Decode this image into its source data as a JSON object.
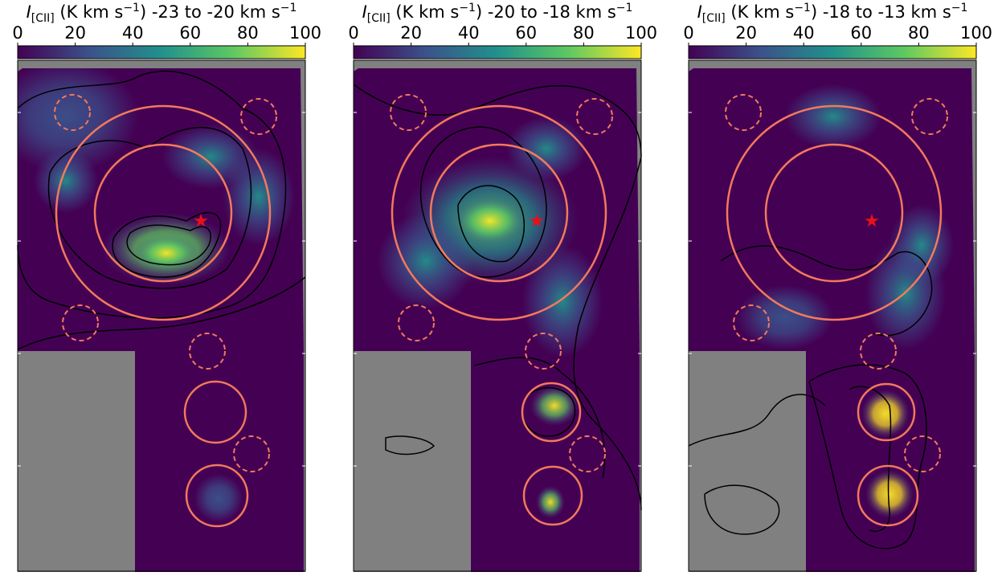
{
  "chart_data": [
    {
      "type": "image",
      "title_parts": [
        "I",
        "[CII]",
        " (K km s",
        "−1",
        ") -23 to -20 km s",
        "−1"
      ],
      "colorbar": {
        "lim": [
          0,
          100
        ],
        "ticks": [
          0,
          20,
          40,
          60,
          80,
          100
        ],
        "colormap": [
          "#440154",
          "#3b528b",
          "#21918c",
          "#5ec962",
          "#fde725"
        ]
      }
    },
    {
      "type": "image",
      "title_parts": [
        "I",
        "[CII]",
        " (K km s",
        "−1",
        ") -20 to -18 km s",
        "−1"
      ],
      "colorbar": {
        "lim": [
          0,
          100
        ],
        "ticks": [
          0,
          20,
          40,
          60,
          80,
          100
        ],
        "colormap": [
          "#440154",
          "#3b528b",
          "#21918c",
          "#5ec962",
          "#fde725"
        ]
      }
    },
    {
      "type": "image",
      "title_parts": [
        "I",
        "[CII]",
        " (K km s",
        "−1",
        ") -18 to -13 km s",
        "−1"
      ],
      "colorbar": {
        "lim": [
          0,
          100
        ],
        "ticks": [
          0,
          20,
          40,
          60,
          80,
          100
        ],
        "colormap": [
          "#440154",
          "#3b528b",
          "#21918c",
          "#5ec962",
          "#fde725"
        ]
      }
    }
  ]
}
